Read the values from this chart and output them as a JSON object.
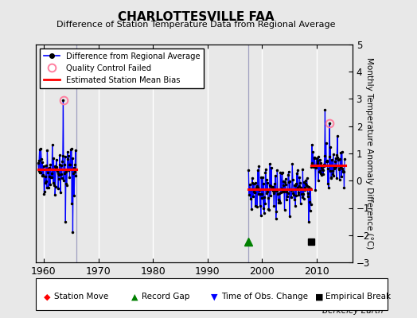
{
  "title": "CHARLOTTESVILLE FAA",
  "subtitle": "Difference of Station Temperature Data from Regional Average",
  "ylabel": "Monthly Temperature Anomaly Difference (°C)",
  "xlim": [
    1958.5,
    2016.5
  ],
  "ylim": [
    -3,
    5
  ],
  "yticks": [
    -3,
    -2,
    -1,
    0,
    1,
    2,
    3,
    4,
    5
  ],
  "xticks": [
    1960,
    1970,
    1980,
    1990,
    2000,
    2010
  ],
  "bg_color": "#e8e8e8",
  "grid_color": "white",
  "watermark": "Berkeley Earth",
  "seg1_start": 1959.0,
  "seg1_end": 1966.0,
  "seg1_bias": 0.42,
  "seg2_start": 1997.5,
  "seg2_end": 2009.0,
  "seg2_bias": -0.32,
  "seg3_start": 2009.0,
  "seg3_end": 2015.2,
  "seg3_bias": 0.55,
  "vline1": 1966.0,
  "vline2": 1997.5,
  "record_gap_x": 1997.5,
  "record_gap_y": -2.25,
  "empirical_break_x": 2009.0,
  "empirical_break_y": -2.25,
  "qc1_x": 1963.6,
  "qc1_y": 2.95,
  "qc2_x": 2012.3,
  "qc2_y": 2.1
}
